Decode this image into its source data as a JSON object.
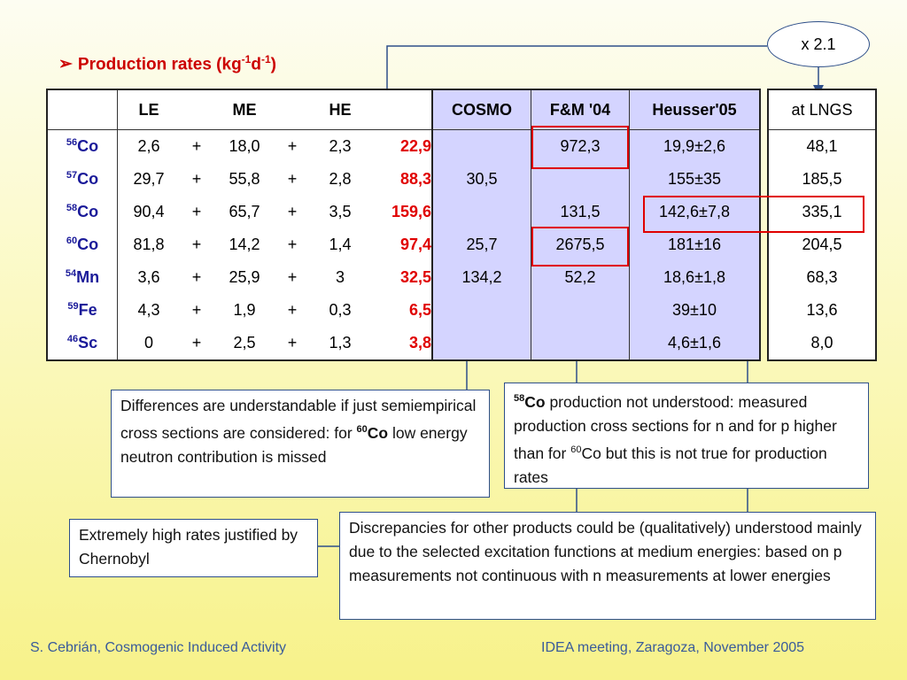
{
  "title": {
    "text": "Production rates (kg",
    "exp1": "-1",
    "mid": "d",
    "exp2": "-1",
    "end": ")"
  },
  "energy_table": {
    "headers": [
      "LE",
      "ME",
      "HE"
    ],
    "rows": [
      {
        "mass": "56",
        "el": "Co",
        "le": "2,6",
        "me": "18,0",
        "he": "2,3",
        "total": "22,9"
      },
      {
        "mass": "57",
        "el": "Co",
        "le": "29,7",
        "me": "55,8",
        "he": "2,8",
        "total": "88,3"
      },
      {
        "mass": "58",
        "el": "Co",
        "le": "90,4",
        "me": "65,7",
        "he": "3,5",
        "total": "159,6"
      },
      {
        "mass": "60",
        "el": "Co",
        "le": "81,8",
        "me": "14,2",
        "he": "1,4",
        "total": "97,4"
      },
      {
        "mass": "54",
        "el": "Mn",
        "le": "3,6",
        "me": "25,9",
        "he": "3",
        "total": "32,5"
      },
      {
        "mass": "59",
        "el": "Fe",
        "le": "4,3",
        "me": "1,9",
        "he": "0,3",
        "total": "6,5"
      },
      {
        "mass": "46",
        "el": "Sc",
        "le": "0",
        "me": "2,5",
        "he": "1,3",
        "total": "3,8"
      }
    ],
    "plus": "+"
  },
  "comparison_table": {
    "headers": [
      "COSMO",
      "F&M '04",
      "Heusser'05"
    ],
    "rows": [
      [
        "",
        "972,3",
        "19,9±2,6"
      ],
      [
        "30,5",
        "",
        "155±35"
      ],
      [
        "",
        "131,5",
        "142,6±7,8"
      ],
      [
        "25,7",
        "2675,5",
        "181±16"
      ],
      [
        "134,2",
        "52,2",
        "18,6±1,8"
      ],
      [
        "",
        "",
        "39±10"
      ],
      [
        "",
        "",
        "4,6±1,6"
      ]
    ]
  },
  "lngs_table": {
    "header": "at LNGS",
    "rows": [
      "48,1",
      "185,5",
      "335,1",
      "204,5",
      "68,3",
      "13,6",
      "8,0"
    ]
  },
  "ellipse_label": "x 2.1",
  "notes": {
    "differences": {
      "pre": "Differences are understandable if just semiempirical cross sections are considered: for ",
      "mass": "60",
      "el": "Co",
      "post": " low energy neutron contribution is missed"
    },
    "co58": {
      "mass": "58",
      "el": "Co",
      "pre": " production not understood: measured production cross sections for n and for p higher than for ",
      "mass2": "60",
      "post": "Co but this is not true for production rates"
    },
    "chernobyl": "Extremely high rates justified by Chernobyl",
    "discrepancies": "Discrepancies for other products could be (qualitatively) understood mainly due to the selected excitation functions at medium energies: based on p measurements not continuous with n measurements at lower energies"
  },
  "footer": {
    "left": "S. Cebrián, Cosmogenic Induced Activity",
    "right": "IDEA meeting, Zaragoza, November 2005"
  },
  "colors": {
    "accent": "#cc0000",
    "nuclide": "#1a1a99",
    "note_border": "#2e4f8a",
    "comparison_bg": "#d4d4ff"
  }
}
